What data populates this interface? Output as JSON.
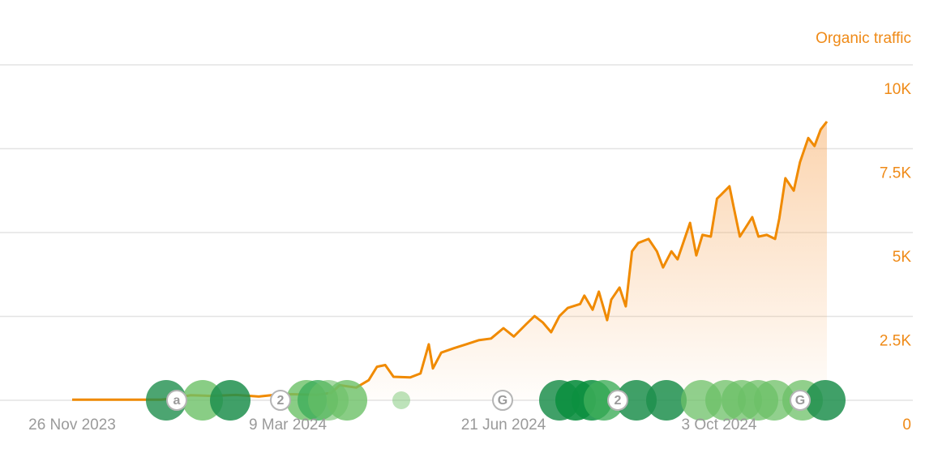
{
  "chart_data": {
    "type": "area",
    "y_axis_title": "Organic traffic",
    "x": [
      "2023-11-26",
      "2024-01-08",
      "2024-01-14",
      "2024-01-22",
      "2024-02-01",
      "2024-02-13",
      "2024-02-24",
      "2024-03-01",
      "2024-03-11",
      "2024-03-23",
      "2024-03-30",
      "2024-04-03",
      "2024-04-11",
      "2024-04-17",
      "2024-04-21",
      "2024-04-25",
      "2024-04-29",
      "2024-05-07",
      "2024-05-12",
      "2024-05-16",
      "2024-05-18",
      "2024-05-22",
      "2024-05-28",
      "2024-06-03",
      "2024-06-09",
      "2024-06-15",
      "2024-06-21",
      "2024-06-26",
      "2024-07-02",
      "2024-07-06",
      "2024-07-10",
      "2024-07-14",
      "2024-07-18",
      "2024-07-22",
      "2024-07-28",
      "2024-07-30",
      "2024-08-03",
      "2024-08-06",
      "2024-08-10",
      "2024-08-12",
      "2024-08-16",
      "2024-08-19",
      "2024-08-22",
      "2024-08-25",
      "2024-08-30",
      "2024-09-03",
      "2024-09-06",
      "2024-09-10",
      "2024-09-13",
      "2024-09-17",
      "2024-09-19",
      "2024-09-22",
      "2024-09-25",
      "2024-09-29",
      "2024-10-02",
      "2024-10-04",
      "2024-10-08",
      "2024-10-10",
      "2024-10-13",
      "2024-10-16",
      "2024-10-19",
      "2024-10-22",
      "2024-10-26",
      "2024-10-30",
      "2024-11-01",
      "2024-11-04",
      "2024-11-08",
      "2024-11-11",
      "2024-11-13",
      "2024-11-15",
      "2024-11-18",
      "2024-11-21",
      "2024-11-24"
    ],
    "series": [
      {
        "name": "Organic traffic",
        "color": "#f08a00",
        "values": [
          20,
          20,
          60,
          150,
          130,
          160,
          110,
          150,
          180,
          160,
          220,
          450,
          380,
          600,
          1000,
          1050,
          700,
          680,
          800,
          1670,
          950,
          1420,
          1550,
          1670,
          1790,
          1840,
          2150,
          1900,
          2270,
          2510,
          2320,
          2030,
          2510,
          2750,
          2870,
          3120,
          2700,
          3240,
          2390,
          3000,
          3360,
          2800,
          4440,
          4690,
          4810,
          4440,
          3960,
          4440,
          4200,
          4930,
          5290,
          4320,
          4930,
          4880,
          6010,
          6130,
          6380,
          5770,
          4880,
          5170,
          5460,
          4880,
          4930,
          4810,
          5410,
          6620,
          6250,
          7100,
          7460,
          7820,
          7580,
          8070,
          8310
        ]
      }
    ],
    "xlim": [
      "2023-11-26",
      "2024-11-24"
    ],
    "xticks": [
      {
        "value": "2023-11-26",
        "label": "26 Nov 2023"
      },
      {
        "value": "2024-03-09",
        "label": "9 Mar 2024"
      },
      {
        "value": "2024-06-21",
        "label": "21 Jun 2024"
      },
      {
        "value": "2024-10-03",
        "label": "3 Oct 2024"
      }
    ],
    "ylim": [
      0,
      10000
    ],
    "yticks": [
      0,
      {
        "value": 2500,
        "label": "2.5K"
      },
      {
        "value": 5000,
        "label": "5K"
      },
      {
        "value": 7500,
        "label": "7.5K"
      },
      {
        "value": 10000,
        "label": "10K"
      }
    ],
    "grid": true,
    "event_icons": [
      "a",
      "2",
      "G",
      "2",
      "G"
    ]
  }
}
